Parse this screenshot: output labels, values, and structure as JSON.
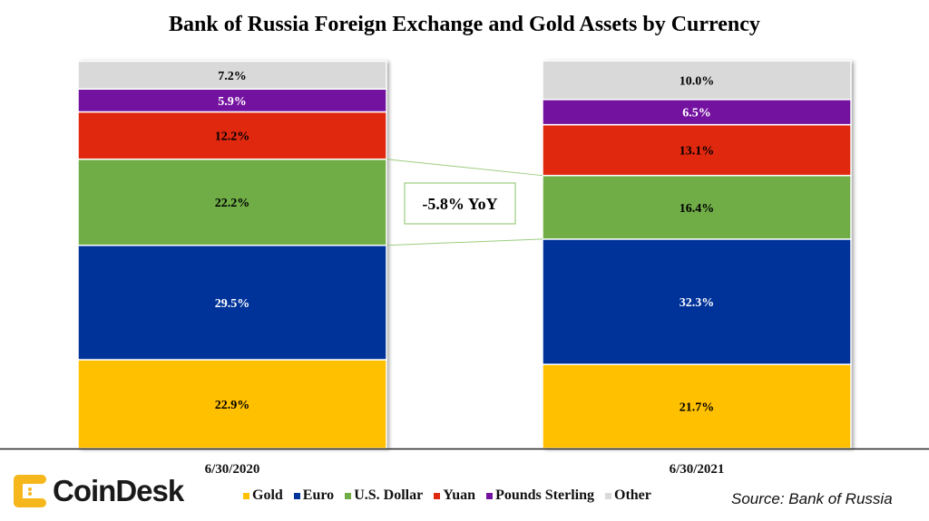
{
  "chart_data": {
    "type": "bar",
    "stacked": true,
    "title": "Bank of Russia Foreign Exchange and Gold Assets by Currency",
    "categories": [
      "6/30/2020",
      "6/30/2021"
    ],
    "series": [
      {
        "name": "Gold",
        "color": "#ffc000",
        "values": [
          22.9,
          21.7
        ],
        "labels": [
          "22.9%",
          "21.7%"
        ],
        "label_color": "#000000"
      },
      {
        "name": "Euro",
        "color": "#003399",
        "values": [
          29.5,
          32.3
        ],
        "labels": [
          "29.5%",
          "32.3%"
        ],
        "label_color": "#ffffff"
      },
      {
        "name": "U.S. Dollar",
        "color": "#70ad47",
        "values": [
          22.2,
          16.4
        ],
        "labels": [
          "22.2%",
          "16.4%"
        ],
        "label_color": "#000000"
      },
      {
        "name": "Yuan",
        "color": "#e0280f",
        "values": [
          12.2,
          13.1
        ],
        "labels": [
          "12.2%",
          "13.1%"
        ],
        "label_color": "#000000"
      },
      {
        "name": "Pounds Sterling",
        "color": "#7412a0",
        "values": [
          5.9,
          6.5
        ],
        "labels": [
          "5.9%",
          "6.5%"
        ],
        "label_color": "#ffffff"
      },
      {
        "name": "Other",
        "color": "#d9d9d9",
        "values": [
          7.2,
          10.0
        ],
        "labels": [
          "7.2%",
          "10.0%"
        ],
        "label_color": "#000000"
      }
    ],
    "ylim": [
      0,
      100
    ],
    "annotation": "-5.8% YoY",
    "legend_position": "bottom"
  },
  "brand": {
    "name": "CoinDesk",
    "color": "#f5b71c"
  },
  "source": "Source: Bank of Russia"
}
